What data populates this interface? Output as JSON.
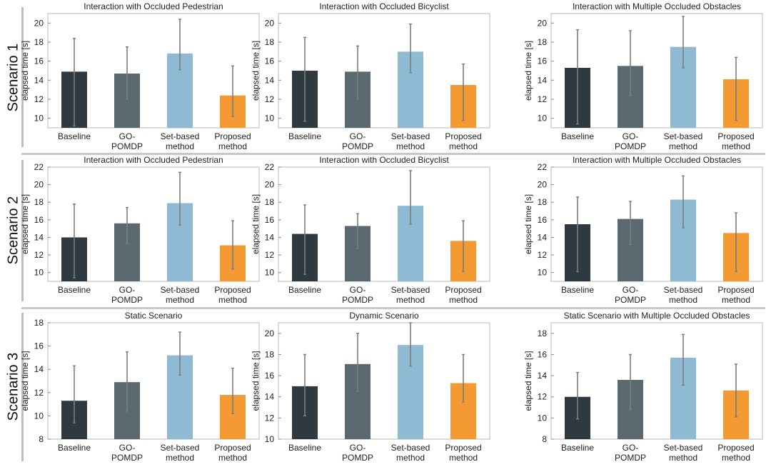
{
  "figure": {
    "rows": [
      {
        "label": "Scenario 1"
      },
      {
        "label": "Scenario 2"
      },
      {
        "label": "Scenario 3"
      }
    ]
  },
  "chart_data": [
    {
      "type": "bar",
      "row": 1,
      "title": "Interaction with Occluded Pedestrian",
      "ylabel": "elapsed time [s]",
      "ylim": [
        9,
        21
      ],
      "yticks": [
        10,
        12,
        14,
        16,
        18,
        20
      ],
      "categories": [
        [
          "Baseline"
        ],
        [
          "GO-",
          "POMDP"
        ],
        [
          "Set-based",
          "method"
        ],
        [
          "Proposed",
          "method"
        ]
      ],
      "values": [
        14.9,
        14.7,
        16.8,
        12.4
      ],
      "error_low": [
        9.2,
        12.0,
        15.1,
        10.2
      ],
      "error_high": [
        18.4,
        17.5,
        20.4,
        15.5
      ],
      "colors": [
        "#2e3a40",
        "#5a6970",
        "#8fbad3",
        "#f39a32"
      ]
    },
    {
      "type": "bar",
      "row": 1,
      "title": "Interaction with Occluded Bicyclist",
      "ylabel": "elapsed time [s]",
      "ylim": [
        9,
        21
      ],
      "yticks": [
        10,
        12,
        14,
        16,
        18,
        20
      ],
      "categories": [
        [
          "Baseline"
        ],
        [
          "GO-",
          "POMDP"
        ],
        [
          "Set-based",
          "method"
        ],
        [
          "Proposed",
          "method"
        ]
      ],
      "values": [
        15.0,
        14.9,
        17.0,
        13.5
      ],
      "error_low": [
        9.7,
        12.0,
        14.8,
        9.8
      ],
      "error_high": [
        18.5,
        17.6,
        19.9,
        15.7
      ],
      "colors": [
        "#2e3a40",
        "#5a6970",
        "#8fbad3",
        "#f39a32"
      ]
    },
    {
      "type": "bar",
      "row": 1,
      "title": "Interaction with Multiple Occluded Obstacles",
      "ylabel": "elapsed time [s]",
      "ylim": [
        9,
        21
      ],
      "yticks": [
        10,
        12,
        14,
        16,
        18,
        20
      ],
      "categories": [
        [
          "Baseline"
        ],
        [
          "GO-",
          "POMDP"
        ],
        [
          "Set-based",
          "method"
        ],
        [
          "Proposed",
          "method"
        ]
      ],
      "values": [
        15.3,
        15.5,
        17.5,
        14.1
      ],
      "error_low": [
        9.4,
        12.4,
        15.3,
        9.8
      ],
      "error_high": [
        19.3,
        19.2,
        20.7,
        16.4
      ],
      "colors": [
        "#2e3a40",
        "#5a6970",
        "#8fbad3",
        "#f39a32"
      ]
    },
    {
      "type": "bar",
      "row": 2,
      "title": "Interaction with Occluded Pedestrian",
      "ylabel": "elapsed time [s]",
      "ylim": [
        9,
        22
      ],
      "yticks": [
        10,
        12,
        14,
        16,
        18,
        20,
        22
      ],
      "categories": [
        [
          "Baseline"
        ],
        [
          "GO-",
          "POMDP"
        ],
        [
          "Set-based",
          "method"
        ],
        [
          "Proposed",
          "method"
        ]
      ],
      "values": [
        14.0,
        15.6,
        17.9,
        13.1
      ],
      "error_low": [
        9.4,
        13.3,
        15.4,
        10.4
      ],
      "error_high": [
        17.8,
        17.4,
        21.4,
        15.9
      ],
      "colors": [
        "#2e3a40",
        "#5a6970",
        "#8fbad3",
        "#f39a32"
      ]
    },
    {
      "type": "bar",
      "row": 2,
      "title": "Interaction with Occluded Bicyclist",
      "ylabel": "elapsed time [s]",
      "ylim": [
        9,
        22
      ],
      "yticks": [
        10,
        12,
        14,
        16,
        18,
        20,
        22
      ],
      "categories": [
        [
          "Baseline"
        ],
        [
          "GO-",
          "POMDP"
        ],
        [
          "Set-based",
          "method"
        ],
        [
          "Proposed",
          "method"
        ]
      ],
      "values": [
        14.4,
        15.3,
        17.6,
        13.6
      ],
      "error_low": [
        9.8,
        12.7,
        15.5,
        10.1
      ],
      "error_high": [
        17.7,
        16.7,
        21.6,
        15.9
      ],
      "colors": [
        "#2e3a40",
        "#5a6970",
        "#8fbad3",
        "#f39a32"
      ]
    },
    {
      "type": "bar",
      "row": 2,
      "title": "Interaction with Multiple Occluded Obstacles",
      "ylabel": "elapsed time [s]",
      "ylim": [
        9,
        22
      ],
      "yticks": [
        10,
        12,
        14,
        16,
        18,
        20,
        22
      ],
      "categories": [
        [
          "Baseline"
        ],
        [
          "GO-",
          "POMDP"
        ],
        [
          "Set-based",
          "method"
        ],
        [
          "Proposed",
          "method"
        ]
      ],
      "values": [
        15.5,
        16.1,
        18.3,
        14.5
      ],
      "error_low": [
        10.1,
        13.2,
        15.1,
        10.1
      ],
      "error_high": [
        18.6,
        18.1,
        21.0,
        16.8
      ],
      "colors": [
        "#2e3a40",
        "#5a6970",
        "#8fbad3",
        "#f39a32"
      ]
    },
    {
      "type": "bar",
      "row": 3,
      "title": "Static Scenario",
      "ylabel": "elapsed time [s]",
      "ylim": [
        8,
        18
      ],
      "yticks": [
        8,
        10,
        12,
        14,
        16,
        18
      ],
      "categories": [
        [
          "Baseline"
        ],
        [
          "GO-",
          "POMDP"
        ],
        [
          "Set-based",
          "method"
        ],
        [
          "Proposed",
          "method"
        ]
      ],
      "values": [
        11.3,
        12.9,
        15.2,
        11.8
      ],
      "error_low": [
        9.4,
        10.4,
        13.5,
        10.2
      ],
      "error_high": [
        14.3,
        15.5,
        17.2,
        14.1
      ],
      "colors": [
        "#2e3a40",
        "#5a6970",
        "#8fbad3",
        "#f39a32"
      ]
    },
    {
      "type": "bar",
      "row": 3,
      "title": "Dynamic Scenario",
      "ylabel": "elapsed time [s]",
      "ylim": [
        10,
        21
      ],
      "yticks": [
        10,
        12,
        14,
        16,
        18,
        20
      ],
      "categories": [
        [
          "Baseline"
        ],
        [
          "GO-",
          "POMDP"
        ],
        [
          "Set-based",
          "method"
        ],
        [
          "Proposed",
          "method"
        ]
      ],
      "values": [
        15.0,
        17.1,
        18.9,
        15.3
      ],
      "error_low": [
        12.2,
        14.5,
        16.9,
        13.5
      ],
      "error_high": [
        18.0,
        20.0,
        21.0,
        18.0
      ],
      "colors": [
        "#2e3a40",
        "#5a6970",
        "#8fbad3",
        "#f39a32"
      ]
    },
    {
      "type": "bar",
      "row": 3,
      "title": "Static Scenario with Multiple Occluded Obstacles",
      "ylabel": "elapsed time [s]",
      "ylim": [
        8,
        19
      ],
      "yticks": [
        8,
        10,
        12,
        14,
        16,
        18
      ],
      "categories": [
        [
          "Baseline"
        ],
        [
          "GO-",
          "POMDP"
        ],
        [
          "Set-based",
          "method"
        ],
        [
          "Proposed",
          "method"
        ]
      ],
      "values": [
        12.0,
        13.6,
        15.7,
        12.6
      ],
      "error_low": [
        9.9,
        10.8,
        13.1,
        10.1
      ],
      "error_high": [
        14.3,
        16.0,
        17.9,
        15.1
      ],
      "colors": [
        "#2e3a40",
        "#5a6970",
        "#8fbad3",
        "#f39a32"
      ]
    }
  ]
}
